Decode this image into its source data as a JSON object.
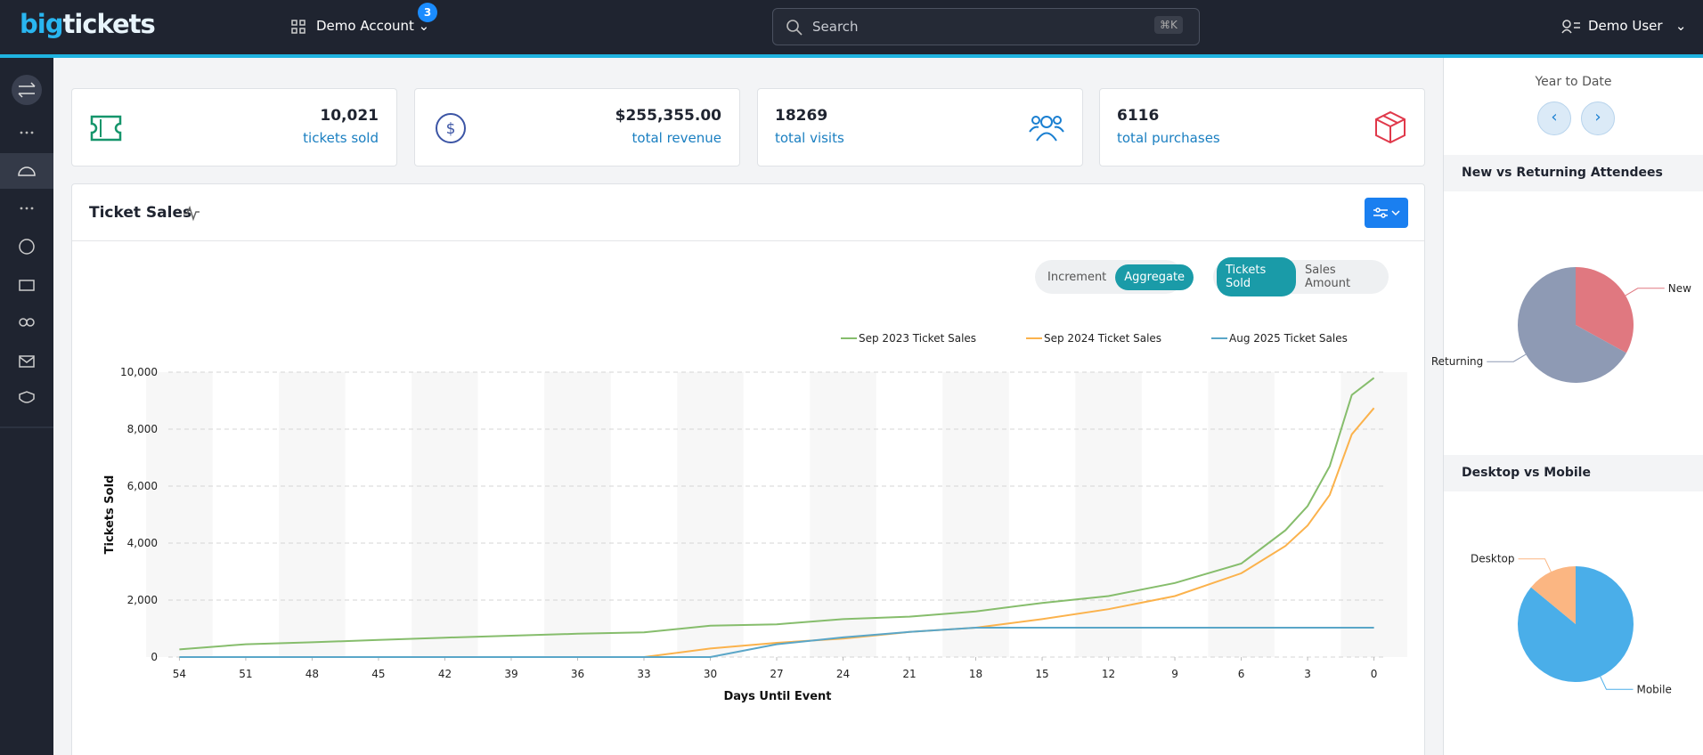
{
  "header": {
    "logo": [
      "big",
      "tickets"
    ],
    "account": "Demo Account",
    "badge": "3",
    "search": "Search",
    "shortcut": "⌘K",
    "user": "Demo User"
  },
  "cards": [
    {
      "value": "10,021",
      "label": "tickets sold"
    },
    {
      "value": "$255,355.00",
      "label": "total revenue"
    },
    {
      "value": "18269",
      "label": "total visits"
    },
    {
      "value": "6116",
      "label": "total purchases"
    }
  ],
  "controls": [
    [
      "Increment",
      "Aggregate"
    ],
    [
      "Tickets Sold",
      "Sales Amount"
    ]
  ],
  "period": "Year to Date",
  "chart_data": [
    {
      "type": "line",
      "title": "Ticket Sales",
      "xlabel": "Days Until Event",
      "ylabel": "Tickets Sold",
      "x": [
        54,
        51,
        48,
        45,
        42,
        39,
        36,
        33,
        30,
        27,
        24,
        21,
        18,
        15,
        12,
        9,
        6,
        4,
        3,
        2,
        1,
        0
      ],
      "series": [
        {
          "name": "Sep 2023 Ticket Sales",
          "color": "#86bd6c",
          "values": [
            270,
            450,
            520,
            600,
            680,
            750,
            820,
            870,
            1100,
            1150,
            1330,
            1420,
            1600,
            1900,
            2140,
            2600,
            3280,
            4450,
            5300,
            6700,
            9200,
            9800
          ]
        },
        {
          "name": "Sep 2024 Ticket Sales",
          "color": "#fbb24c",
          "values": [
            0,
            0,
            0,
            0,
            0,
            0,
            0,
            0,
            300,
            500,
            650,
            880,
            1030,
            1330,
            1680,
            2140,
            2940,
            3900,
            4620,
            5690,
            7820,
            8740
          ]
        },
        {
          "name": "Aug 2025 Ticket Sales",
          "color": "#5aa6c8",
          "values": [
            0,
            0,
            0,
            0,
            0,
            0,
            0,
            0,
            0,
            450,
            690,
            880,
            1030,
            1030,
            1030,
            1030,
            1030,
            1030,
            1030,
            1030,
            1030,
            1030
          ]
        }
      ],
      "xlim": [
        54.5,
        -0.5
      ],
      "xticks": [
        54,
        51,
        48,
        45,
        42,
        39,
        36,
        33,
        30,
        27,
        24,
        21,
        18,
        15,
        12,
        9,
        6,
        3,
        0
      ],
      "ylim": [
        0,
        10000
      ],
      "yticks": [
        0,
        {
          "value": 2000,
          "label": "2,000"
        },
        {
          "value": 4000,
          "label": "4,000"
        },
        {
          "value": 6000,
          "label": "6,000"
        },
        {
          "value": 8000,
          "label": "8,000"
        },
        {
          "value": 10000,
          "label": "10,000"
        }
      ],
      "grid": true,
      "legend": "top-right"
    },
    {
      "type": "pie",
      "title": "New vs Returning Attendees",
      "categories": [
        "New",
        "Returning"
      ],
      "values": [
        33,
        67
      ],
      "colors": [
        "#e07880",
        "#8e9ab4"
      ]
    },
    {
      "type": "pie",
      "title": "Desktop vs Mobile",
      "categories": [
        "Mobile",
        "Desktop"
      ],
      "values": [
        86,
        14
      ],
      "colors": [
        "#4aaee9",
        "#fbb682"
      ]
    }
  ]
}
